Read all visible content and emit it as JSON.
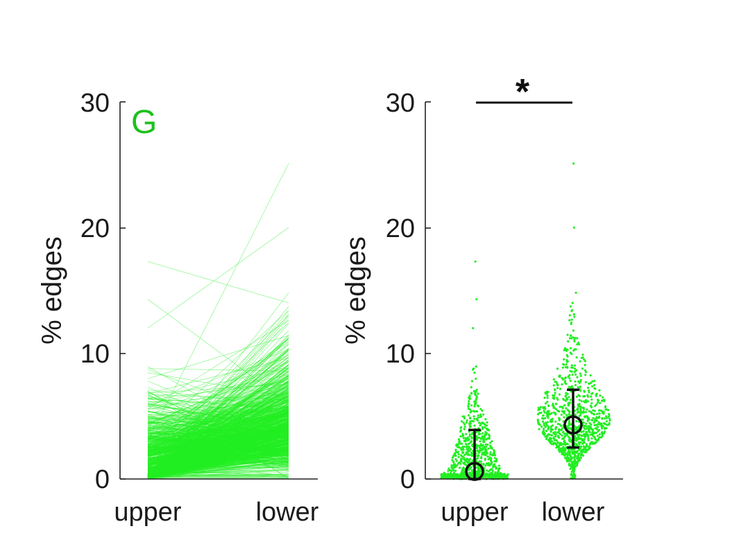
{
  "colors": {
    "series": "#22ee22",
    "axis": "#222222",
    "summary": "#111111",
    "panel_letter": "#1cc11c"
  },
  "chart_data": [
    {
      "type": "line",
      "panel": "G",
      "categories": [
        "upper",
        "lower"
      ],
      "ylabel": "% edges",
      "ylim": [
        0,
        30
      ],
      "yticks": [
        "0",
        "10",
        "20",
        "30"
      ],
      "description": "paired lines, one per sample, connecting upper value to lower value",
      "upper_range": [
        0,
        17.3
      ],
      "lower_range": [
        0,
        25.1
      ],
      "n_lines_approx": 1000
    },
    {
      "type": "scatter",
      "categories": [
        "upper",
        "lower"
      ],
      "ylabel": "% edges",
      "ylim": [
        0,
        30
      ],
      "yticks": [
        "0",
        "10",
        "20",
        "30"
      ],
      "summary": [
        {
          "category": "upper",
          "median": 0.6,
          "q1": 0.0,
          "q3": 3.9
        },
        {
          "category": "lower",
          "median": 4.3,
          "q1": 2.5,
          "q3": 7.1
        }
      ],
      "upper_max": 17.3,
      "lower_max": 25.1,
      "significance": {
        "label": "*",
        "from": "upper",
        "to": "lower",
        "y": 30
      }
    }
  ]
}
